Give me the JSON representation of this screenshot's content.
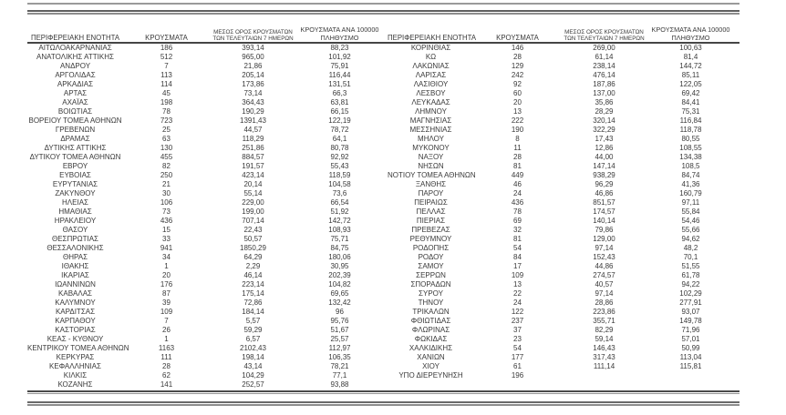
{
  "colors": {
    "background": "#ffffff",
    "text": "#3a3a3a",
    "outer_rule": "#8d8d8d",
    "header_rule": "#454545"
  },
  "header": {
    "col1": "ΠΕΡΙΦΕΡΕΙΑΚΗ ΕΝΟΤΗΤΑ",
    "col2": "ΚΡΟΥΣΜΑΤΑ",
    "col3_line1": "ΜΕΣΟΣ ΟΡΟΣ ΚΡΟΥΣΜΑΤΩΝ",
    "col3_line2": "ΤΩΝ ΤΕΛΕΥΤΑΙΩΝ 7 ΗΜΕΡΩΝ",
    "col4_line1": "ΚΡΟΥΣΜΑΤΑ ΑΝΑ 100000",
    "col4_line2": "ΠΛΗΘΥΣΜΟ"
  },
  "columns": [
    "ΠΕΡΙΦΕΡΕΙΑΚΗ ΕΝΟΤΗΤΑ",
    "ΚΡΟΥΣΜΑΤΑ",
    "ΜΕΣΟΣ ΟΡΟΣ ΚΡΟΥΣΜΑΤΩΝ ΤΩΝ ΤΕΛΕΥΤΑΙΩΝ 7 ΗΜΕΡΩΝ",
    "ΚΡΟΥΣΜΑΤΑ ΑΝΑ 100000 ΠΛΗΘΥΣΜΟ"
  ],
  "left_table": {
    "rows": [
      [
        "ΑΙΤΩΛΟΑΚΑΡΝΑΝΙΑΣ",
        "186",
        "393,14",
        "88,23"
      ],
      [
        "ΑΝΑΤΟΛΙΚΗΣ ΑΤΤΙΚΗΣ",
        "512",
        "965,00",
        "101,92"
      ],
      [
        "ΑΝΔΡΟΥ",
        "7",
        "21,86",
        "75,91"
      ],
      [
        "ΑΡΓΟΛΙΔΑΣ",
        "113",
        "205,14",
        "116,44"
      ],
      [
        "ΑΡΚΑΔΙΑΣ",
        "114",
        "173,86",
        "131,51"
      ],
      [
        "ΑΡΤΑΣ",
        "45",
        "73,14",
        "66,3"
      ],
      [
        "ΑΧΑΪΑΣ",
        "198",
        "364,43",
        "63,81"
      ],
      [
        "ΒΟΙΩΤΙΑΣ",
        "78",
        "190,29",
        "66,15"
      ],
      [
        "ΒΟΡΕΙΟΥ ΤΟΜΕΑ ΑΘΗΝΩΝ",
        "723",
        "1391,43",
        "122,19"
      ],
      [
        "ΓΡΕΒΕΝΩΝ",
        "25",
        "44,57",
        "78,72"
      ],
      [
        "ΔΡΑΜΑΣ",
        "63",
        "118,29",
        "64,1"
      ],
      [
        "ΔΥΤΙΚΗΣ ΑΤΤΙΚΗΣ",
        "130",
        "251,86",
        "80,78"
      ],
      [
        "ΔΥΤΙΚΟΥ ΤΟΜΕΑ ΑΘΗΝΩΝ",
        "455",
        "884,57",
        "92,92"
      ],
      [
        "ΕΒΡΟΥ",
        "82",
        "191,57",
        "55,43"
      ],
      [
        "ΕΥΒΟΙΑΣ",
        "250",
        "423,14",
        "118,59"
      ],
      [
        "ΕΥΡΥΤΑΝΙΑΣ",
        "21",
        "20,14",
        "104,58"
      ],
      [
        "ΖΑΚΥΝΘΟΥ",
        "30",
        "55,14",
        "73,6"
      ],
      [
        "ΗΛΕΙΑΣ",
        "106",
        "229,00",
        "66,54"
      ],
      [
        "ΗΜΑΘΙΑΣ",
        "73",
        "199,00",
        "51,92"
      ],
      [
        "ΗΡΑΚΛΕΙΟΥ",
        "436",
        "707,14",
        "142,72"
      ],
      [
        "ΘΑΣΟΥ",
        "15",
        "22,43",
        "108,93"
      ],
      [
        "ΘΕΣΠΡΩΤΙΑΣ",
        "33",
        "50,57",
        "75,71"
      ],
      [
        "ΘΕΣΣΑΛΟΝΙΚΗΣ",
        "941",
        "1850,29",
        "84,75"
      ],
      [
        "ΘΗΡΑΣ",
        "34",
        "64,29",
        "180,06"
      ],
      [
        "ΙΘΑΚΗΣ",
        "1",
        "2,29",
        "30,95"
      ],
      [
        "ΙΚΑΡΙΑΣ",
        "20",
        "46,14",
        "202,39"
      ],
      [
        "ΙΩΑΝΝΙΝΩΝ",
        "176",
        "223,14",
        "104,82"
      ],
      [
        "ΚΑΒΑΛΑΣ",
        "87",
        "175,14",
        "69,65"
      ],
      [
        "ΚΑΛΥΜΝΟΥ",
        "39",
        "72,86",
        "132,42"
      ],
      [
        "ΚΑΡΔΙΤΣΑΣ",
        "109",
        "184,14",
        "96"
      ],
      [
        "ΚΑΡΠΑΘΟΥ",
        "7",
        "5,57",
        "95,76"
      ],
      [
        "ΚΑΣΤΟΡΙΑΣ",
        "26",
        "59,29",
        "51,67"
      ],
      [
        "ΚΕΑΣ - ΚΥΘΝΟΥ",
        "1",
        "6,57",
        "25,57"
      ],
      [
        "ΚΕΝΤΡΙΚΟΥ ΤΟΜΕΑ ΑΘΗΝΩΝ",
        "1163",
        "2102,43",
        "112,97"
      ],
      [
        "ΚΕΡΚΥΡΑΣ",
        "111",
        "198,14",
        "106,35"
      ],
      [
        "ΚΕΦΑΛΛΗΝΙΑΣ",
        "28",
        "43,14",
        "78,21"
      ],
      [
        "ΚΙΛΚΙΣ",
        "62",
        "104,29",
        "77,1"
      ],
      [
        "ΚΟΖΑΝΗΣ",
        "141",
        "252,57",
        "93,88"
      ]
    ]
  },
  "right_table": {
    "rows": [
      [
        "ΚΟΡΙΝΘΙΑΣ",
        "146",
        "269,00",
        "100,63"
      ],
      [
        "ΚΩ",
        "28",
        "61,14",
        "81,4"
      ],
      [
        "ΛΑΚΩΝΙΑΣ",
        "129",
        "238,14",
        "144,72"
      ],
      [
        "ΛΑΡΙΣΑΣ",
        "242",
        "476,14",
        "85,11"
      ],
      [
        "ΛΑΣΙΘΙΟΥ",
        "92",
        "187,86",
        "122,05"
      ],
      [
        "ΛΕΣΒΟΥ",
        "60",
        "137,00",
        "69,42"
      ],
      [
        "ΛΕΥΚΑΔΑΣ",
        "20",
        "35,86",
        "84,41"
      ],
      [
        "ΛΗΜΝΟΥ",
        "13",
        "28,29",
        "75,31"
      ],
      [
        "ΜΑΓΝΗΣΙΑΣ",
        "222",
        "320,14",
        "116,84"
      ],
      [
        "ΜΕΣΣΗΝΙΑΣ",
        "190",
        "322,29",
        "118,78"
      ],
      [
        "ΜΗΛΟΥ",
        "8",
        "17,43",
        "80,55"
      ],
      [
        "ΜΥΚΟΝΟΥ",
        "11",
        "12,86",
        "108,55"
      ],
      [
        "ΝΑΞΟΥ",
        "28",
        "44,00",
        "134,38"
      ],
      [
        "ΝΗΣΩΝ",
        "81",
        "147,14",
        "108,5"
      ],
      [
        "ΝΟΤΙΟΥ ΤΟΜΕΑ ΑΘΗΝΩΝ",
        "449",
        "938,29",
        "84,74"
      ],
      [
        "ΞΑΝΘΗΣ",
        "46",
        "96,29",
        "41,36"
      ],
      [
        "ΠΑΡΟΥ",
        "24",
        "46,86",
        "160,79"
      ],
      [
        "ΠΕΙΡΑΙΩΣ",
        "436",
        "851,57",
        "97,11"
      ],
      [
        "ΠΕΛΛΑΣ",
        "78",
        "174,57",
        "55,84"
      ],
      [
        "ΠΙΕΡΙΑΣ",
        "69",
        "140,14",
        "54,46"
      ],
      [
        "ΠΡΕΒΕΖΑΣ",
        "32",
        "79,86",
        "55,66"
      ],
      [
        "ΡΕΘΥΜΝΟΥ",
        "81",
        "129,00",
        "94,62"
      ],
      [
        "ΡΟΔΟΠΗΣ",
        "54",
        "97,14",
        "48,2"
      ],
      [
        "ΡΟΔΟΥ",
        "84",
        "152,43",
        "70,1"
      ],
      [
        "ΣΑΜΟΥ",
        "17",
        "44,86",
        "51,55"
      ],
      [
        "ΣΕΡΡΩΝ",
        "109",
        "274,57",
        "61,78"
      ],
      [
        "ΣΠΟΡΑΔΩΝ",
        "13",
        "40,57",
        "94,22"
      ],
      [
        "ΣΥΡΟΥ",
        "22",
        "97,14",
        "102,29"
      ],
      [
        "ΤΗΝΟΥ",
        "24",
        "28,86",
        "277,91"
      ],
      [
        "ΤΡΙΚΑΛΩΝ",
        "122",
        "223,86",
        "93,07"
      ],
      [
        "ΦΘΙΩΤΙΔΑΣ",
        "237",
        "355,71",
        "149,78"
      ],
      [
        "ΦΛΩΡΙΝΑΣ",
        "37",
        "82,29",
        "71,96"
      ],
      [
        "ΦΩΚΙΔΑΣ",
        "23",
        "59,14",
        "57,01"
      ],
      [
        "ΧΑΛΚΙΔΙΚΗΣ",
        "54",
        "146,43",
        "50,99"
      ],
      [
        "ΧΑΝΙΩΝ",
        "177",
        "317,43",
        "113,04"
      ],
      [
        "ΧΙΟΥ",
        "61",
        "111,14",
        "115,81"
      ],
      [
        "ΥΠΟ ΔΙΕΡΕΥΝΗΣΗ",
        "196",
        "",
        ""
      ]
    ]
  }
}
